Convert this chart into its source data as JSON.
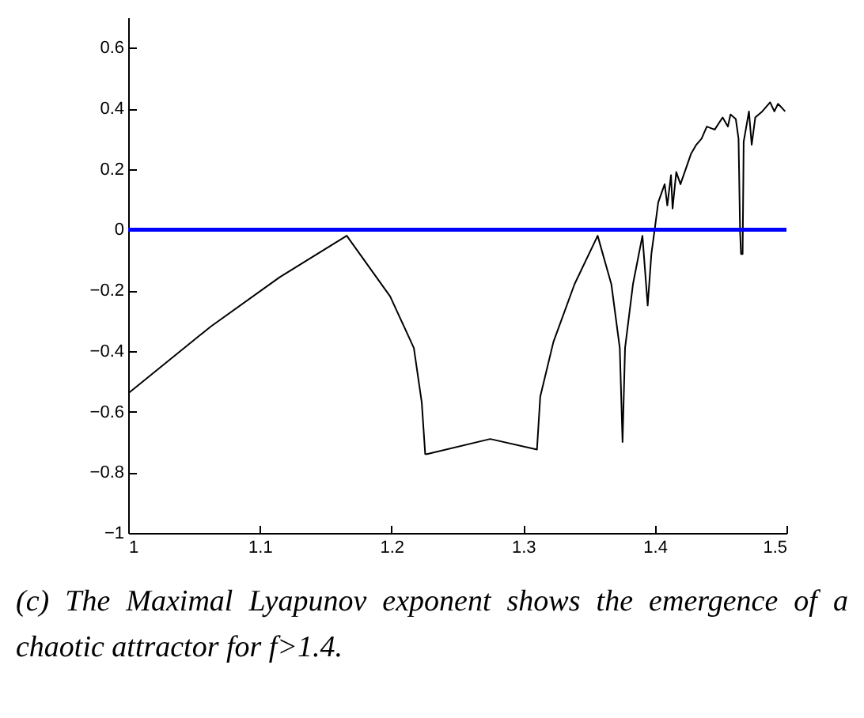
{
  "chart_data": {
    "type": "line",
    "x": [
      1.0,
      1.0625,
      1.115,
      1.166,
      1.199,
      1.217,
      1.223,
      1.2256,
      1.227,
      1.275,
      1.3105,
      1.313,
      1.323,
      1.339,
      1.3566,
      1.367,
      1.3734,
      1.3755,
      1.3774,
      1.3834,
      1.3906,
      1.3946,
      1.3974,
      1.4002,
      1.4026,
      1.4075,
      1.4095,
      1.4123,
      1.4135,
      1.4163,
      1.4195,
      1.4275,
      1.4315,
      1.4355,
      1.4395,
      1.4455,
      1.4515,
      1.4555,
      1.4575,
      1.4615,
      1.4636,
      1.4648,
      1.4655,
      1.4667,
      1.4675,
      1.4715,
      1.4736,
      1.4763,
      1.4816,
      1.4876,
      1.4908,
      1.4936,
      1.499
    ],
    "series": [
      {
        "color": "#000000",
        "values": [
          -0.54,
          -0.32,
          -0.157,
          -0.02,
          -0.22,
          -0.39,
          -0.57,
          -0.74,
          -0.74,
          -0.69,
          -0.725,
          -0.55,
          -0.37,
          -0.18,
          -0.02,
          -0.18,
          -0.39,
          -0.7,
          -0.39,
          -0.18,
          -0.02,
          -0.25,
          -0.08,
          0.01,
          0.09,
          0.15,
          0.08,
          0.18,
          0.07,
          0.19,
          0.15,
          0.25,
          0.28,
          0.3,
          0.34,
          0.33,
          0.37,
          0.34,
          0.38,
          0.365,
          0.3,
          -0.01,
          -0.08,
          -0.08,
          0.29,
          0.39,
          0.28,
          0.37,
          0.39,
          0.42,
          0.39,
          0.415,
          0.39
        ]
      }
    ],
    "xlim": [
      1,
      1.5
    ],
    "xticks": [
      1,
      1.1,
      1.2,
      1.3,
      1.4,
      1.5
    ],
    "ylim": [
      -1,
      0.7
    ],
    "yticks": [
      -1,
      -0.8,
      -0.6,
      -0.4,
      -0.2,
      0,
      0.2,
      0.4,
      0.6
    ],
    "ref_lines": [
      {
        "axis": "y",
        "value": 0,
        "color": "#0000ff"
      }
    ],
    "grid": false,
    "annotations": [
      "(c) The Maximal Lyapunov exponent shows the emergence of a chaotic attractor for f>1.4."
    ]
  }
}
